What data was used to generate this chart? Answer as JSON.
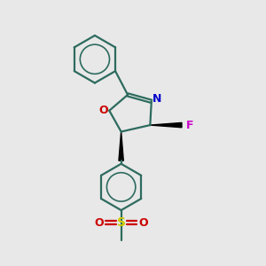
{
  "background_color": "#e8e8e8",
  "bond_color": "#2d6b5e",
  "nitrogen_color": "#0000cc",
  "oxygen_color": "#cc0000",
  "fluorine_color": "#cc00cc",
  "sulfur_color": "#cccc00",
  "so_color": "#cc0000",
  "line_width": 1.6,
  "figsize": [
    3.0,
    3.0
  ],
  "dpi": 100,
  "xlim": [
    0,
    10
  ],
  "ylim": [
    0,
    10
  ]
}
